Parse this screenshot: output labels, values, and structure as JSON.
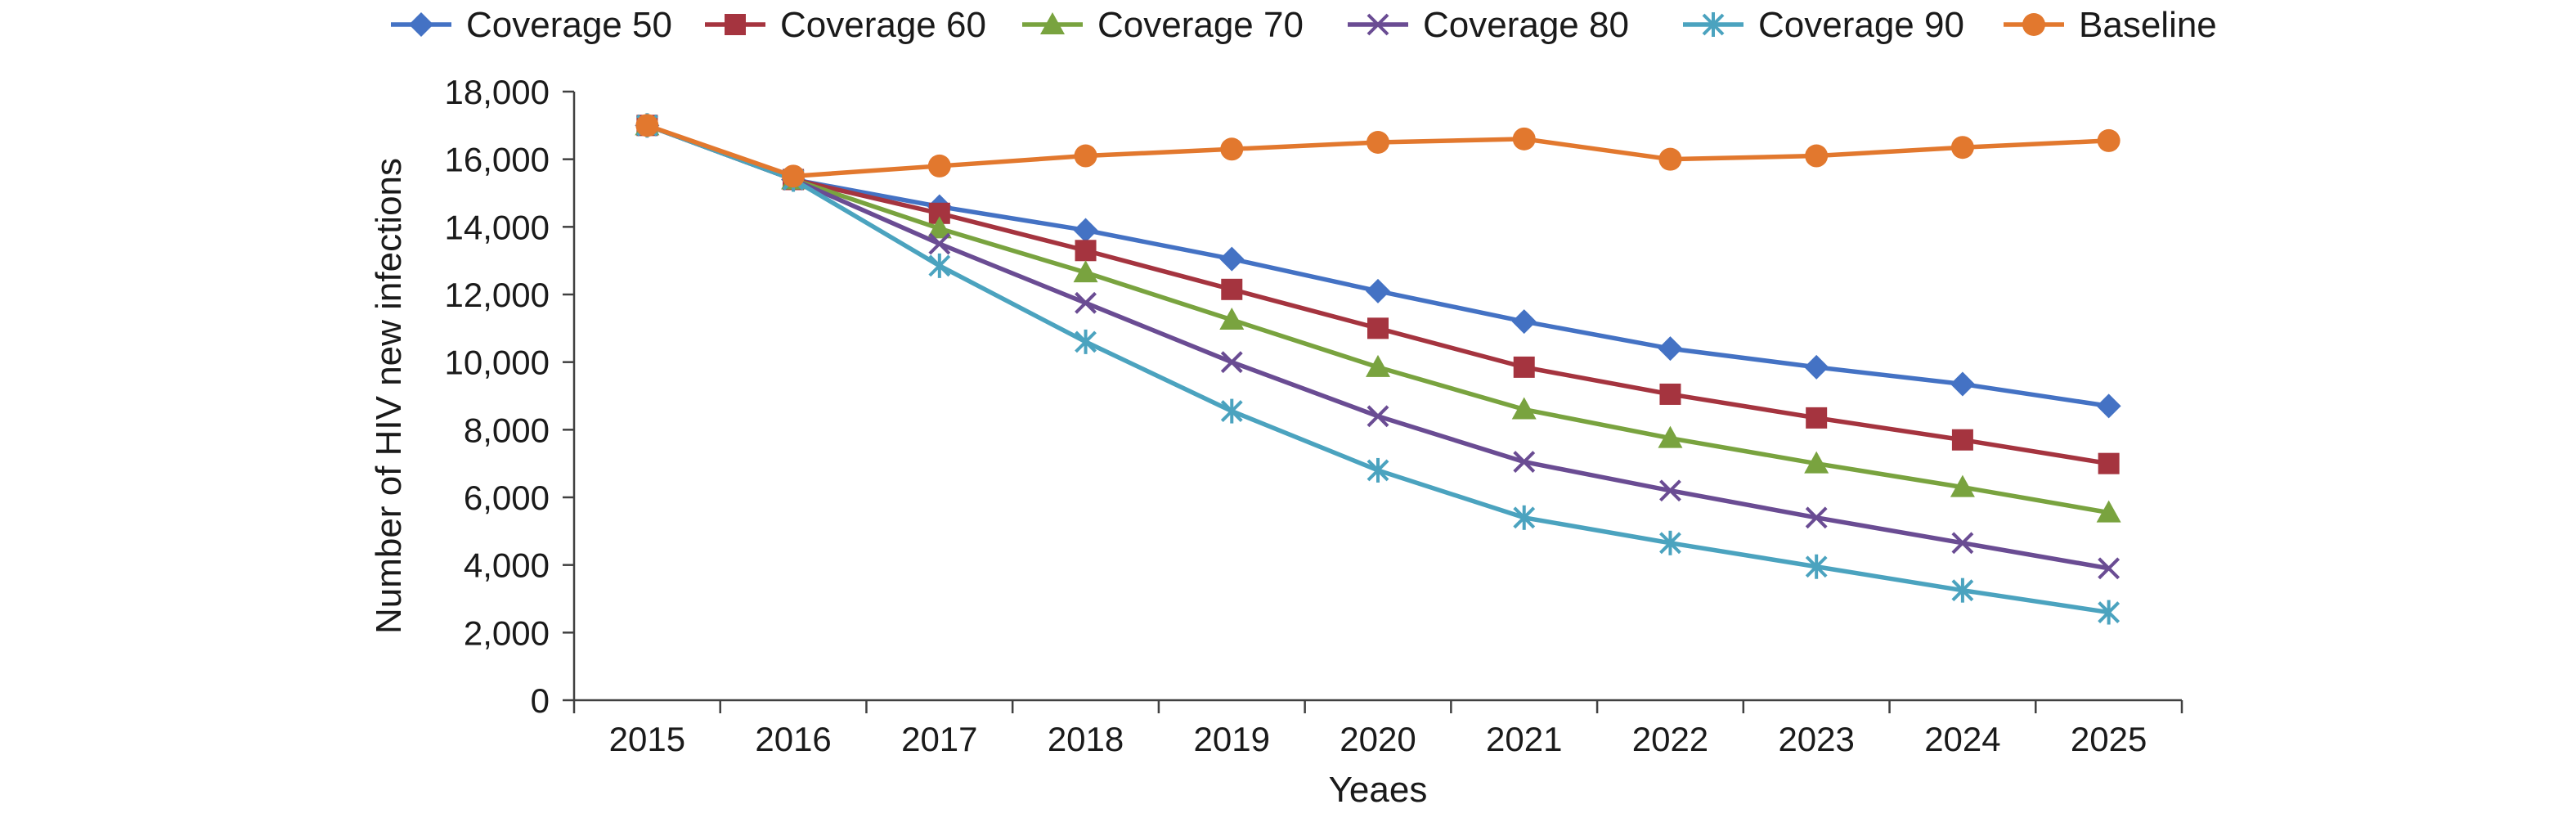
{
  "chart_data": {
    "type": "line",
    "title": "",
    "xlabel": "Yeaes",
    "ylabel": "Number of HIV new infections",
    "x": [
      2015,
      2016,
      2017,
      2018,
      2019,
      2020,
      2021,
      2022,
      2023,
      2024,
      2025
    ],
    "x_tick_labels": [
      "2015",
      "2016",
      "2017",
      "2018",
      "2019",
      "2020",
      "2021",
      "2022",
      "2023",
      "2024",
      "2025"
    ],
    "ylim": [
      0,
      18000
    ],
    "y_ticks": [
      0,
      2000,
      4000,
      6000,
      8000,
      10000,
      12000,
      14000,
      16000,
      18000
    ],
    "y_tick_labels": [
      "0",
      "2,000",
      "4,000",
      "6,000",
      "8,000",
      "10,000",
      "12,000",
      "14,000",
      "16,000",
      "18,000"
    ],
    "grid": false,
    "legend_position": "top",
    "series": [
      {
        "name": "Coverage 50",
        "color": "#4472C4",
        "marker": "diamond",
        "values": [
          17000,
          15400,
          14600,
          13900,
          13050,
          12100,
          11200,
          10400,
          9850,
          9350,
          8700
        ]
      },
      {
        "name": "Coverage 60",
        "color": "#A5343F",
        "marker": "square",
        "values": [
          17000,
          15400,
          14400,
          13300,
          12150,
          11000,
          9850,
          9050,
          8350,
          7700,
          7000
        ]
      },
      {
        "name": "Coverage 70",
        "color": "#79A33F",
        "marker": "triangle",
        "values": [
          17000,
          15400,
          13950,
          12650,
          11250,
          9850,
          8600,
          7750,
          7000,
          6300,
          5550
        ]
      },
      {
        "name": "Coverage 80",
        "color": "#6A4C93",
        "marker": "x",
        "values": [
          17000,
          15400,
          13500,
          11750,
          10000,
          8400,
          7050,
          6200,
          5400,
          4650,
          3900
        ]
      },
      {
        "name": "Coverage 90",
        "color": "#4BA3BF",
        "marker": "asterisk",
        "values": [
          17000,
          15400,
          12850,
          10600,
          8550,
          6800,
          5400,
          4650,
          3950,
          3250,
          2600
        ]
      },
      {
        "name": "Baseline",
        "color": "#E2782E",
        "marker": "circle",
        "values": [
          17000,
          15500,
          15800,
          16100,
          16300,
          16500,
          16600,
          16000,
          16100,
          16350,
          16550
        ]
      }
    ]
  }
}
